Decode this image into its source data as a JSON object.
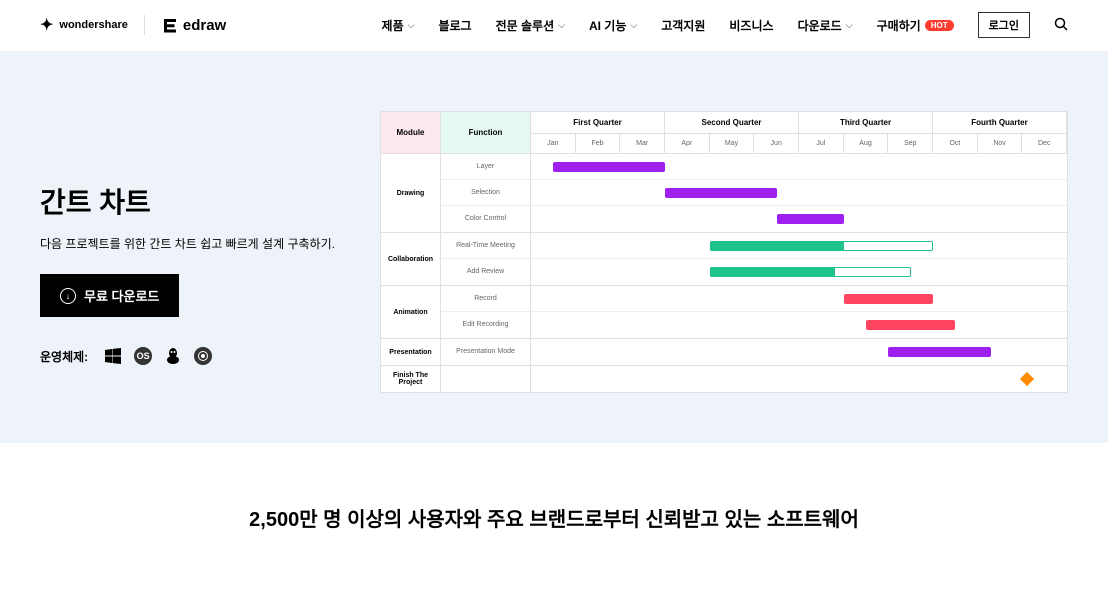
{
  "header": {
    "logo_ws": "wondershare",
    "logo_edraw": "edraw",
    "nav": [
      {
        "label": "제품",
        "dropdown": true
      },
      {
        "label": "블로그",
        "dropdown": false
      },
      {
        "label": "전문 솔루션",
        "dropdown": true
      },
      {
        "label": "AI 기능",
        "dropdown": true
      },
      {
        "label": "고객지원",
        "dropdown": false
      },
      {
        "label": "비즈니스",
        "dropdown": false
      },
      {
        "label": "다운로드",
        "dropdown": true
      },
      {
        "label": "구매하기",
        "dropdown": false,
        "badge": "HOT"
      }
    ],
    "login": "로그인"
  },
  "hero": {
    "title": "간트 차트",
    "desc": "다음 프로젝트를 위한 간트 차트 쉽고 빠르게 설계 구축하기.",
    "download": "무료 다운로드",
    "os_label": "운영체제:",
    "os_list": [
      "windows",
      "macos",
      "linux",
      "web"
    ]
  },
  "gantt": {
    "header_module": "Module",
    "header_function": "Function",
    "quarters": [
      "First Quarter",
      "Second Quarter",
      "Third Quarter",
      "Fourth Quarter"
    ],
    "months": [
      "Jan",
      "Feb",
      "Mar",
      "Apr",
      "May",
      "Jun",
      "Jul",
      "Aug",
      "Sep",
      "Oct",
      "Nov",
      "Dec"
    ],
    "colors": {
      "purple": "#a020f0",
      "green": "#1ec28b",
      "red": "#ff4560",
      "orange": "#ff8c00"
    },
    "modules": [
      {
        "name": "Drawing",
        "tasks": [
          {
            "label": "Layer",
            "start": 0.5,
            "end": 3,
            "color": "#a020f0"
          },
          {
            "label": "Selection",
            "start": 3,
            "end": 5.5,
            "color": "#a020f0"
          },
          {
            "label": "Color Control",
            "start": 5.5,
            "end": 7,
            "color": "#a020f0"
          }
        ]
      },
      {
        "name": "Collaboration",
        "tasks": [
          {
            "label": "Real-Time Meeting",
            "start": 4,
            "end": 7,
            "color": "#1ec28b",
            "outline_end": 9
          },
          {
            "label": "Add Review",
            "start": 4,
            "end": 6.8,
            "color": "#1ec28b",
            "outline_end": 8.5
          }
        ]
      },
      {
        "name": "Animation",
        "tasks": [
          {
            "label": "Record",
            "start": 7,
            "end": 9,
            "color": "#ff4560"
          },
          {
            "label": "Edit Recording",
            "start": 7.5,
            "end": 9.5,
            "color": "#ff4560"
          }
        ]
      },
      {
        "name": "Presentation",
        "tasks": [
          {
            "label": "Presentation Mode",
            "start": 8,
            "end": 10.3,
            "color": "#a020f0"
          }
        ]
      },
      {
        "name": "Finish The Project",
        "tasks": [
          {
            "label": "",
            "milestone": true,
            "at": 11,
            "color": "#ff8c00"
          }
        ]
      }
    ]
  },
  "trust": {
    "title": "2,500만 명 이상의 사용자와 주요 브랜드로부터 신뢰받고 있는 소프트웨어"
  }
}
